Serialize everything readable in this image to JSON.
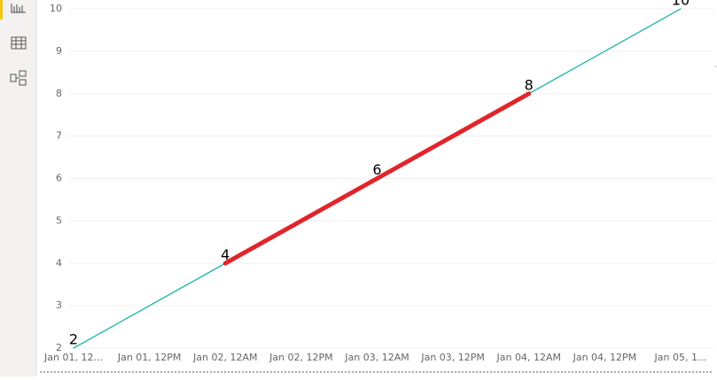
{
  "chart_data": {
    "type": "line",
    "x": [
      "Jan 01, 12AM",
      "Jan 02, 12AM",
      "Jan 03, 12AM",
      "Jan 04, 12AM",
      "Jan 05, 12AM"
    ],
    "series": [
      {
        "color": "#1fb5ad",
        "values": [
          2,
          4,
          6,
          8,
          10
        ]
      },
      {
        "color": "#e0252b",
        "values": [
          null,
          4,
          6,
          8,
          null
        ]
      }
    ],
    "xlim": [
      "Jan 01, 12AM",
      "Jan 05, 12AM"
    ],
    "xticks": [
      {
        "value": "Jan 01, 12AM",
        "label": "Jan 01, 12..."
      },
      {
        "value": "Jan 01, 12PM",
        "label": "Jan 01, 12PM"
      },
      {
        "value": "Jan 02, 12AM",
        "label": "Jan 02, 12AM"
      },
      {
        "value": "Jan 02, 12PM",
        "label": "Jan 02, 12PM"
      },
      {
        "value": "Jan 03, 12AM",
        "label": "Jan 03, 12AM"
      },
      {
        "value": "Jan 03, 12PM",
        "label": "Jan 03, 12PM"
      },
      {
        "value": "Jan 04, 12AM",
        "label": "Jan 04, 12AM"
      },
      {
        "value": "Jan 04, 12PM",
        "label": "Jan 04, 12PM"
      },
      {
        "value": "Jan 05, 12AM",
        "label": "Jan 05, 1..."
      }
    ],
    "ylim": [
      2,
      10
    ],
    "yticks": [
      2,
      3,
      4,
      5,
      6,
      7,
      8,
      9,
      10
    ],
    "grid": true,
    "data_labels": true
  }
}
